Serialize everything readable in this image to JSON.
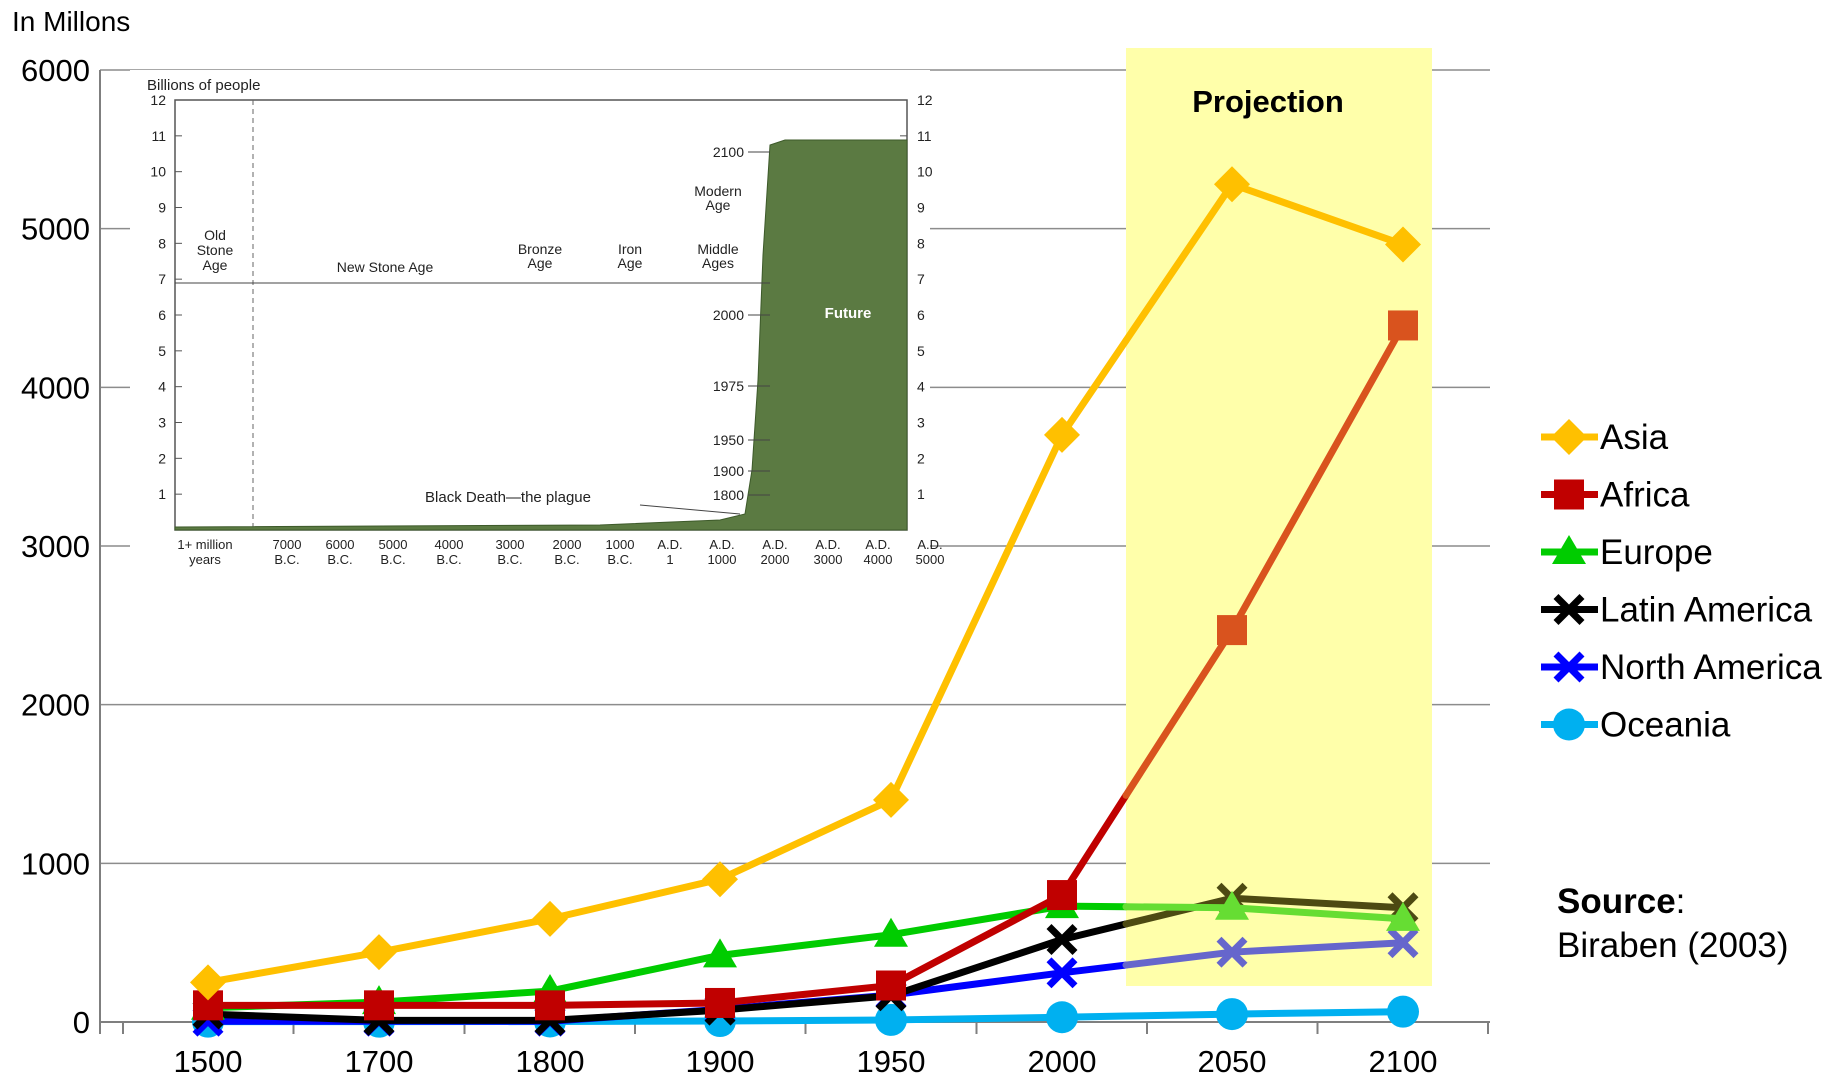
{
  "chart_data": {
    "type": "line",
    "ylabel": "In Millons",
    "ylim": [
      0,
      6000
    ],
    "y_ticks": [
      "0",
      "1000",
      "2000",
      "3000",
      "4000",
      "5000",
      "6000"
    ],
    "categories": [
      "1500",
      "1700",
      "1800",
      "1900",
      "1950",
      "2000",
      "2050",
      "2100"
    ],
    "projection_label": "Projection",
    "projection_start_category": "2000",
    "series": [
      {
        "name": "Asia",
        "color": "#FFC000",
        "marker": "diamond",
        "values": [
          250,
          440,
          650,
          900,
          1400,
          3700,
          5280,
          4900
        ]
      },
      {
        "name": "Africa",
        "color": "#C00000",
        "projection_color": "#D9531E",
        "marker": "square",
        "values": [
          105,
          105,
          105,
          120,
          230,
          800,
          2470,
          4390
        ]
      },
      {
        "name": "Europe",
        "color": "#00CC00",
        "projection_color": "#66DD33",
        "marker": "triangle",
        "values": [
          90,
          125,
          195,
          420,
          550,
          730,
          720,
          650
        ]
      },
      {
        "name": "Latin America",
        "color": "#000000",
        "projection_color": "#4D4A12",
        "marker": "x",
        "values": [
          50,
          10,
          10,
          75,
          165,
          520,
          780,
          720
        ]
      },
      {
        "name": "North America",
        "color": "#0000FF",
        "projection_color": "#6666CC",
        "marker": "x",
        "values": [
          5,
          5,
          5,
          80,
          170,
          310,
          440,
          500
        ]
      },
      {
        "name": "Oceania",
        "color": "#00B0F0",
        "marker": "circle",
        "values": [
          2,
          2,
          3,
          6,
          13,
          30,
          50,
          65
        ]
      }
    ],
    "legend_position": "right",
    "source_label": "Source",
    "source_text": "Biraben (2003)"
  },
  "inset": {
    "title": "Billions of people",
    "y_ticks": [
      "1",
      "2",
      "3",
      "4",
      "5",
      "6",
      "7",
      "8",
      "9",
      "10",
      "11",
      "12"
    ],
    "eras": [
      "Old Stone Age",
      "New Stone Age",
      "Bronze Age",
      "Iron Age",
      "Middle Ages",
      "Modern Age"
    ],
    "x_labels": [
      [
        "1+ million",
        "years"
      ],
      [
        "7000",
        "B.C."
      ],
      [
        "6000",
        "B.C."
      ],
      [
        "5000",
        "B.C."
      ],
      [
        "4000",
        "B.C."
      ],
      [
        "3000",
        "B.C."
      ],
      [
        "2000",
        "B.C."
      ],
      [
        "1000",
        "B.C."
      ],
      [
        "A.D.",
        "1"
      ],
      [
        "A.D.",
        "1000"
      ],
      [
        "A.D.",
        "2000"
      ],
      [
        "A.D.",
        "3000"
      ],
      [
        "A.D.",
        "4000"
      ],
      [
        "A.D.",
        "5000"
      ]
    ],
    "year_markers": [
      "2100",
      "2000",
      "1975",
      "1950",
      "1900",
      "1800"
    ],
    "annotation": "Black Death—the plague",
    "future_label": "Future",
    "fill_color": "#5B7A42"
  }
}
